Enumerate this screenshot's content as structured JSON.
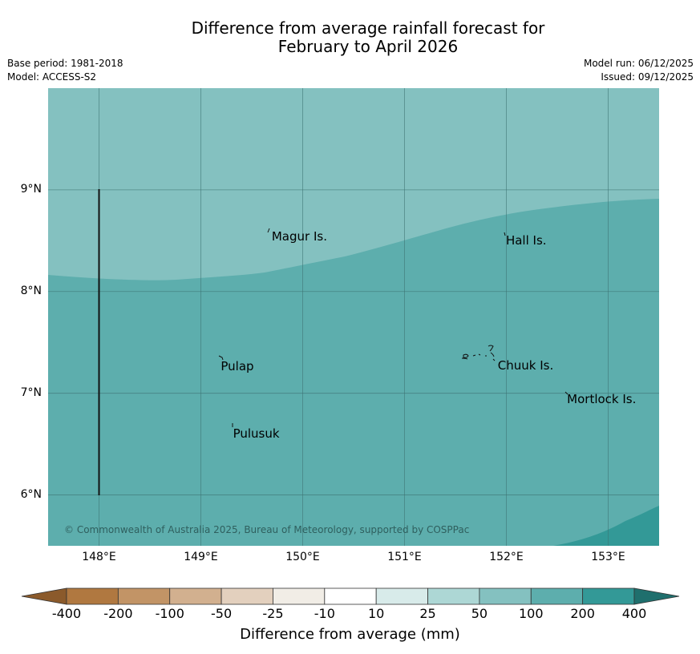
{
  "title": {
    "line1": "Difference from average rainfall forecast for",
    "line2": "February to April 2026"
  },
  "meta": {
    "base_period": "Base period: 1981-2018",
    "model": "Model: ACCESS-S2",
    "model_run": "Model run: 06/12/2025",
    "issued": "Issued: 09/12/2025"
  },
  "map": {
    "lon_range": [
      147.5,
      153.5
    ],
    "lat_range": [
      5.5,
      10.0
    ],
    "lat_ticks": [
      {
        "value": 9,
        "label": "9°N"
      },
      {
        "value": 8,
        "label": "8°N"
      },
      {
        "value": 7,
        "label": "7°N"
      },
      {
        "value": 6,
        "label": "6°N"
      }
    ],
    "lon_ticks": [
      {
        "value": 148,
        "label": "148°E"
      },
      {
        "value": 149,
        "label": "149°E"
      },
      {
        "value": 150,
        "label": "150°E"
      },
      {
        "value": 151,
        "label": "151°E"
      },
      {
        "value": 152,
        "label": "152°E"
      },
      {
        "value": 153,
        "label": "153°E"
      }
    ],
    "places": [
      {
        "name": "Magur Is.",
        "lon": 149.68,
        "lat": 8.56
      },
      {
        "name": "Hall Is.",
        "lon": 151.98,
        "lat": 8.52
      },
      {
        "name": "Pulap",
        "lon": 149.18,
        "lat": 7.28
      },
      {
        "name": "Chuuk Is.",
        "lon": 151.9,
        "lat": 7.29
      },
      {
        "name": "Mortlock Is.",
        "lon": 152.58,
        "lat": 6.96
      },
      {
        "name": "Pulusuk",
        "lon": 149.3,
        "lat": 6.62
      }
    ],
    "copyright": "© Commonwealth of Australia 2025, Bureau of Meteorology, supported by COSPPac",
    "colors": {
      "band_25_50": "#84c1c0",
      "band_50_100": "#5daead",
      "band_100_200": "#339997",
      "grid": "#3d7372",
      "boundary": "#111111"
    }
  },
  "colorbar": {
    "labels": [
      "-400",
      "-200",
      "-100",
      "-50",
      "-25",
      "-10",
      "10",
      "25",
      "50",
      "100",
      "200",
      "400"
    ],
    "colors": [
      "#8b5a2b",
      "#b07840",
      "#c29466",
      "#d2b08f",
      "#e3d0be",
      "#f1ede6",
      "#ffffff",
      "#d8ebea",
      "#add7d5",
      "#84c1c0",
      "#5daead",
      "#339997",
      "#1f6f6d"
    ],
    "title": "Difference from average (mm)"
  }
}
